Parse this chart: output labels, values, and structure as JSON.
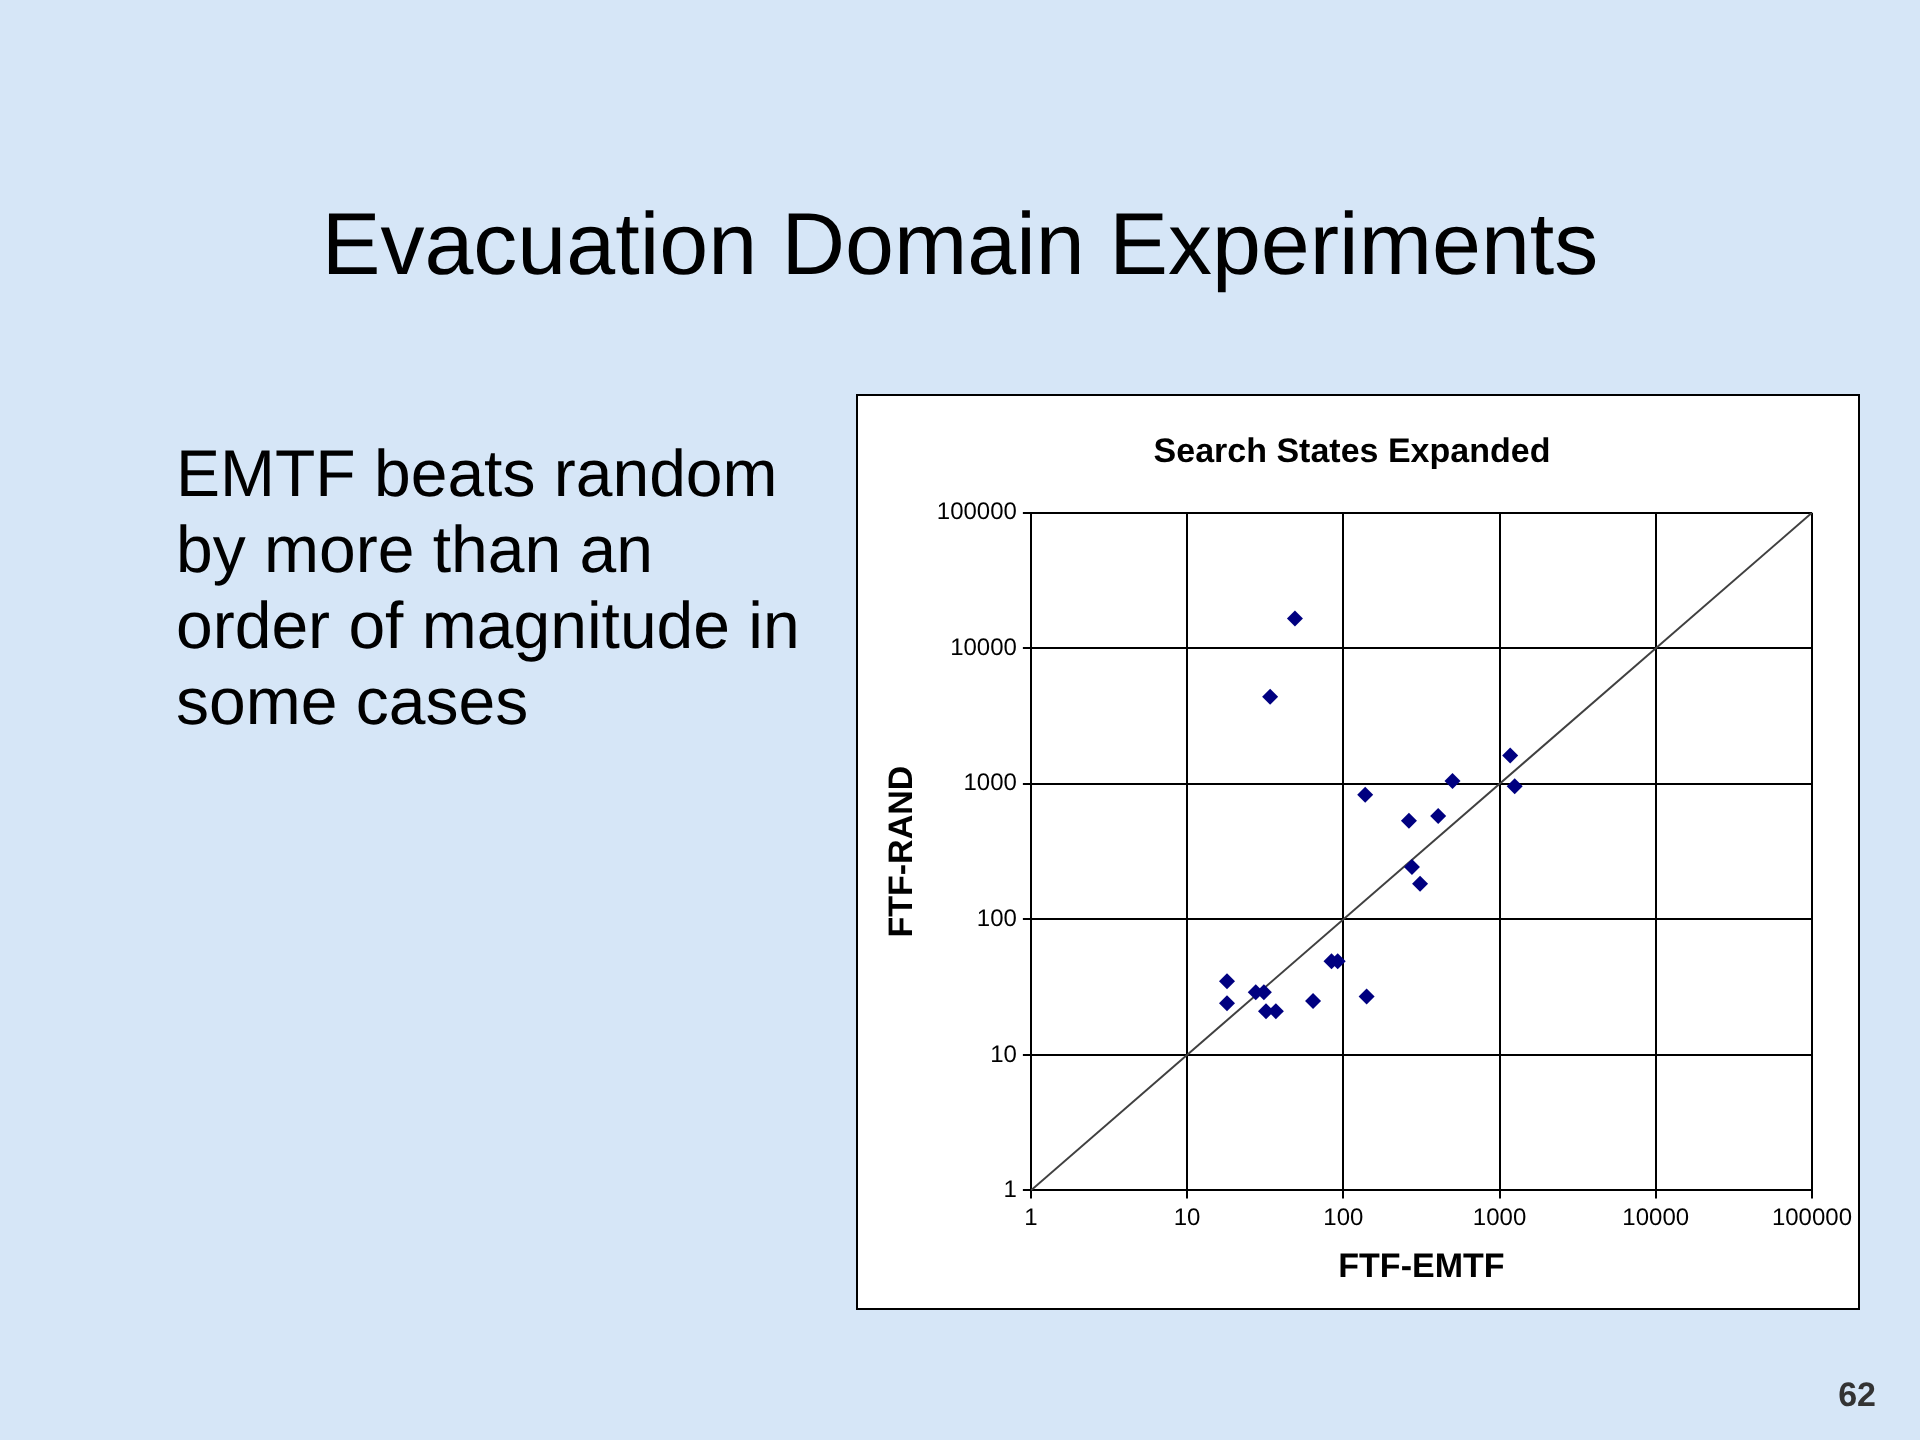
{
  "chart_data": {
    "type": "scatter",
    "title": "Search States Expanded",
    "xlabel": "FTF-EMTF",
    "ylabel": "FTF-RAND",
    "log": "xy",
    "grid": true,
    "legend": false,
    "marker": "diamond",
    "xlim": [
      1,
      100000
    ],
    "ylim": [
      1,
      100000
    ],
    "xticks": [
      1,
      10,
      100,
      1000,
      10000,
      100000
    ],
    "yticks": [
      1,
      10,
      100,
      1000,
      10000,
      100000
    ],
    "annotations": [
      "Evacuation Domain Experiments",
      "EMTF beats random by more than an order of magnitude in some cases",
      "62"
    ],
    "series": [
      {
        "color": "#000080",
        "x": [
          49,
          34,
          1170,
          1250,
          500,
          138,
          263,
          405,
          275,
          310,
          84,
          92,
          18,
          18,
          27.5,
          31,
          32,
          37,
          64,
          141
        ],
        "values": [
          16600,
          4400,
          1620,
          960,
          1050,
          830,
          535,
          580,
          243,
          183,
          49,
          49,
          35,
          24,
          29,
          29,
          21,
          21,
          25,
          27
        ]
      },
      {
        "type": "line",
        "color": "#404040",
        "marker": "none",
        "x": [
          1,
          100000
        ],
        "values": [
          1,
          100000
        ]
      }
    ]
  }
}
